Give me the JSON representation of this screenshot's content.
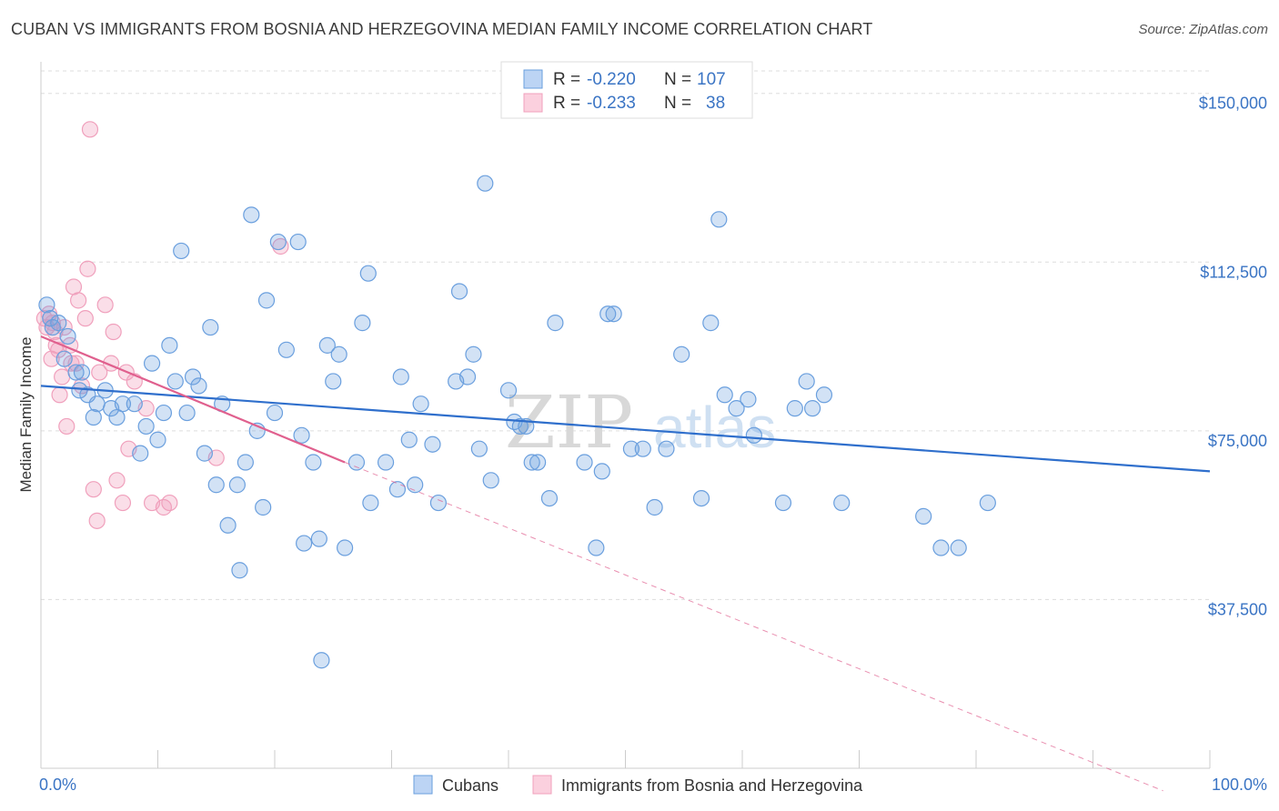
{
  "title": "CUBAN VS IMMIGRANTS FROM BOSNIA AND HERZEGOVINA MEDIAN FAMILY INCOME CORRELATION CHART",
  "source": "Source: ZipAtlas.com",
  "watermark": {
    "zip": "ZIP",
    "atlas": "atlas"
  },
  "colors": {
    "blue": "#6a9fde",
    "blue_line": "#2f6fcc",
    "pink": "#f0a0bc",
    "pink_line": "#e0608e",
    "tick": "#3a74c4",
    "grid": "#dddddd"
  },
  "legend": {
    "rows": [
      {
        "r_label": "R = ",
        "r_value": "-0.220",
        "n_label": "N = ",
        "n_value": "107"
      },
      {
        "r_label": "R = ",
        "r_value": "-0.233",
        "n_label": "N = ",
        "n_value": "38"
      }
    ]
  },
  "chart_data": {
    "type": "scatter",
    "ylabel": "Median Family Income",
    "xlabel": "",
    "xlim": [
      0,
      100
    ],
    "ylim": [
      0,
      155000
    ],
    "y_ticks": [
      37500,
      75000,
      112500,
      150000
    ],
    "y_tick_labels": [
      "$37,500",
      "$75,000",
      "$112,500",
      "$150,000"
    ],
    "x_tick_labels": [
      "0.0%",
      "100.0%"
    ],
    "grid": true,
    "series": [
      {
        "name": "Cubans",
        "color": "#6a9fde",
        "trend": {
          "x0": 0,
          "y0": 85000,
          "x1": 100,
          "y1": 66000
        },
        "points": [
          [
            0.5,
            103000
          ],
          [
            0.8,
            100000
          ],
          [
            1.0,
            98000
          ],
          [
            1.5,
            99000
          ],
          [
            2.0,
            91000
          ],
          [
            2.3,
            96000
          ],
          [
            3.0,
            88000
          ],
          [
            3.3,
            84000
          ],
          [
            3.5,
            88000
          ],
          [
            4.0,
            83000
          ],
          [
            4.5,
            78000
          ],
          [
            4.8,
            81000
          ],
          [
            5.5,
            84000
          ],
          [
            6.0,
            80000
          ],
          [
            6.5,
            78000
          ],
          [
            7.0,
            81000
          ],
          [
            8.0,
            81000
          ],
          [
            8.5,
            70000
          ],
          [
            9.0,
            76000
          ],
          [
            9.5,
            90000
          ],
          [
            10.0,
            73000
          ],
          [
            10.5,
            79000
          ],
          [
            11.0,
            94000
          ],
          [
            11.5,
            86000
          ],
          [
            12.0,
            115000
          ],
          [
            12.5,
            79000
          ],
          [
            13.0,
            87000
          ],
          [
            13.5,
            85000
          ],
          [
            14.0,
            70000
          ],
          [
            14.5,
            98000
          ],
          [
            15.0,
            63000
          ],
          [
            15.5,
            81000
          ],
          [
            16.0,
            54000
          ],
          [
            16.8,
            63000
          ],
          [
            17.0,
            44000
          ],
          [
            17.5,
            68000
          ],
          [
            18.0,
            123000
          ],
          [
            18.5,
            75000
          ],
          [
            19.0,
            58000
          ],
          [
            19.3,
            104000
          ],
          [
            20.0,
            79000
          ],
          [
            20.3,
            117000
          ],
          [
            21.0,
            93000
          ],
          [
            22.0,
            117000
          ],
          [
            22.3,
            74000
          ],
          [
            22.5,
            50000
          ],
          [
            23.3,
            68000
          ],
          [
            23.8,
            51000
          ],
          [
            24.0,
            24000
          ],
          [
            24.5,
            94000
          ],
          [
            25.0,
            86000
          ],
          [
            25.5,
            92000
          ],
          [
            26.0,
            49000
          ],
          [
            27.0,
            68000
          ],
          [
            27.5,
            99000
          ],
          [
            28.0,
            110000
          ],
          [
            28.2,
            59000
          ],
          [
            29.5,
            68000
          ],
          [
            30.5,
            62000
          ],
          [
            30.8,
            87000
          ],
          [
            31.5,
            73000
          ],
          [
            32.0,
            63000
          ],
          [
            32.5,
            81000
          ],
          [
            33.5,
            72000
          ],
          [
            34.0,
            59000
          ],
          [
            35.5,
            86000
          ],
          [
            35.8,
            106000
          ],
          [
            36.5,
            87000
          ],
          [
            37.0,
            92000
          ],
          [
            37.5,
            71000
          ],
          [
            38.0,
            130000
          ],
          [
            38.5,
            64000
          ],
          [
            40.0,
            84000
          ],
          [
            40.5,
            77000
          ],
          [
            41.0,
            76000
          ],
          [
            41.5,
            76000
          ],
          [
            42.0,
            68000
          ],
          [
            42.5,
            68000
          ],
          [
            43.5,
            60000
          ],
          [
            44.0,
            99000
          ],
          [
            46.5,
            68000
          ],
          [
            47.5,
            49000
          ],
          [
            48.0,
            66000
          ],
          [
            48.5,
            101000
          ],
          [
            49.0,
            101000
          ],
          [
            50.5,
            71000
          ],
          [
            51.5,
            71000
          ],
          [
            52.5,
            58000
          ],
          [
            53.5,
            71000
          ],
          [
            54.8,
            92000
          ],
          [
            56.5,
            60000
          ],
          [
            57.3,
            99000
          ],
          [
            58.0,
            122000
          ],
          [
            58.5,
            83000
          ],
          [
            59.5,
            80000
          ],
          [
            60.5,
            82000
          ],
          [
            61.0,
            74000
          ],
          [
            63.5,
            59000
          ],
          [
            64.5,
            80000
          ],
          [
            65.5,
            86000
          ],
          [
            66.0,
            80000
          ],
          [
            67.0,
            83000
          ],
          [
            68.5,
            59000
          ],
          [
            75.5,
            56000
          ],
          [
            77.0,
            49000
          ],
          [
            78.5,
            49000
          ],
          [
            81.0,
            59000
          ]
        ]
      },
      {
        "name": "Immigrants from Bosnia and Herzegovina",
        "color": "#f0a0bc",
        "trend": {
          "x0": 0,
          "y0": 96000,
          "x1": 26,
          "y1": 68000
        },
        "trend_ext": {
          "x0": 26,
          "y0": 68000,
          "x1": 96,
          "y1": -5000
        },
        "points": [
          [
            0.3,
            100000
          ],
          [
            0.5,
            98000
          ],
          [
            0.7,
            101000
          ],
          [
            1.0,
            99000
          ],
          [
            1.2,
            97000
          ],
          [
            1.3,
            94000
          ],
          [
            1.5,
            93000
          ],
          [
            1.8,
            87000
          ],
          [
            2.0,
            98000
          ],
          [
            2.2,
            76000
          ],
          [
            2.5,
            94000
          ],
          [
            2.8,
            107000
          ],
          [
            3.0,
            90000
          ],
          [
            3.2,
            104000
          ],
          [
            3.5,
            85000
          ],
          [
            3.8,
            100000
          ],
          [
            4.0,
            111000
          ],
          [
            4.2,
            142000
          ],
          [
            4.5,
            62000
          ],
          [
            4.8,
            55000
          ],
          [
            5.0,
            88000
          ],
          [
            5.5,
            103000
          ],
          [
            6.0,
            90000
          ],
          [
            6.2,
            97000
          ],
          [
            6.5,
            64000
          ],
          [
            7.0,
            59000
          ],
          [
            7.3,
            88000
          ],
          [
            7.5,
            71000
          ],
          [
            8.0,
            86000
          ],
          [
            9.0,
            80000
          ],
          [
            9.5,
            59000
          ],
          [
            10.5,
            58000
          ],
          [
            11.0,
            59000
          ],
          [
            15.0,
            69000
          ],
          [
            20.5,
            116000
          ],
          [
            0.9,
            91000
          ],
          [
            1.6,
            83000
          ],
          [
            2.6,
            90000
          ]
        ]
      }
    ]
  },
  "bottom_legend": [
    {
      "label": "Cubans",
      "color": "#6a9fde"
    },
    {
      "label": "Immigrants from Bosnia and Herzegovina",
      "color": "#f0a0bc"
    }
  ]
}
